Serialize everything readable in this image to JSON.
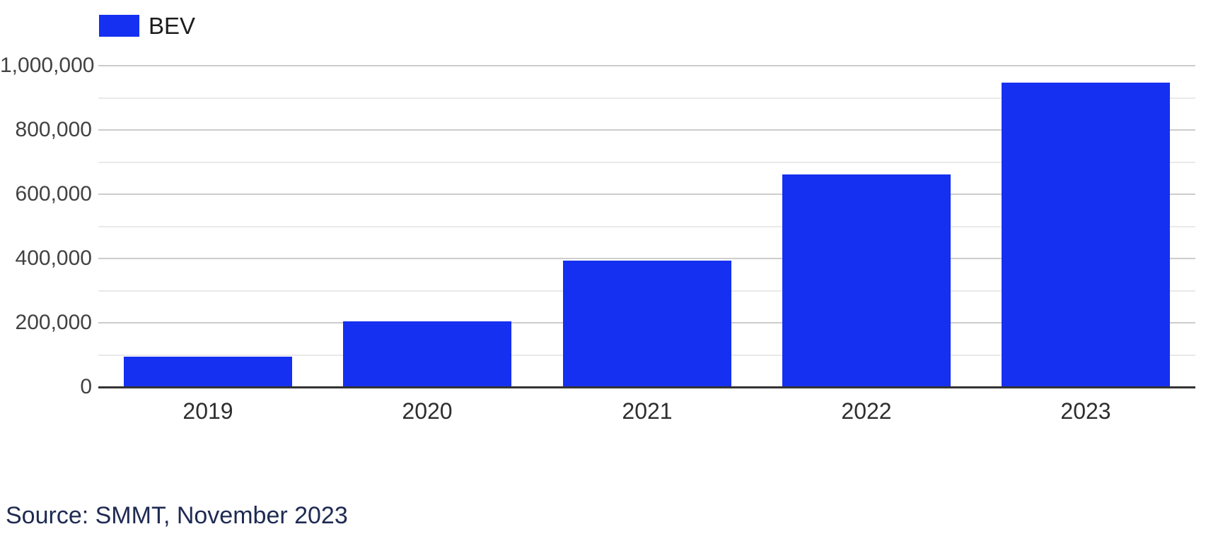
{
  "legend": {
    "label": "BEV",
    "swatch_color": "#1530f0"
  },
  "source": {
    "text": "Source: SMMT, November 2023"
  },
  "colors": {
    "bar": "#1530f0",
    "source_text": "#1e2a52",
    "axis_label": "#424242",
    "major_grid": "#cccccc",
    "minor_grid": "#e9e9e9",
    "baseline": "#333333"
  },
  "chart_data": {
    "type": "bar",
    "title": "",
    "xlabel": "",
    "ylabel": "",
    "categories": [
      "2019",
      "2020",
      "2021",
      "2022",
      "2023"
    ],
    "series": [
      {
        "name": "BEV",
        "color": "#1530f0",
        "values": [
          95000,
          205000,
          393000,
          661000,
          947000
        ]
      }
    ],
    "ylim": [
      0,
      1000000
    ],
    "grid": true,
    "gridline_interval": 100000,
    "labeled_tick_interval": 200000,
    "y_tick_labels": [
      "0",
      "200,000",
      "400,000",
      "600,000",
      "800,000",
      "1,000,000"
    ],
    "legend_position": "top-left"
  }
}
